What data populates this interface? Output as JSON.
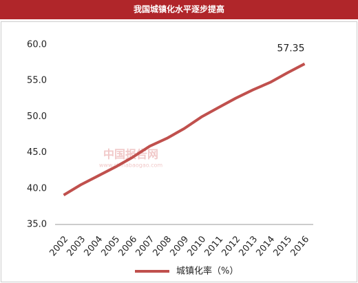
{
  "chart_data": {
    "type": "line",
    "title": "我国城镇化水平逐步提高",
    "categories": [
      "2002",
      "2003",
      "2004",
      "2005",
      "2006",
      "2007",
      "2008",
      "2009",
      "2010",
      "2011",
      "2012",
      "2013",
      "2014",
      "2015",
      "2016"
    ],
    "series": [
      {
        "name": "城镇化率（%）",
        "color": "#c0504d",
        "values": [
          39.09,
          40.53,
          41.76,
          42.99,
          44.34,
          45.89,
          46.99,
          48.34,
          49.95,
          51.27,
          52.57,
          53.73,
          54.77,
          56.1,
          57.35
        ]
      }
    ],
    "ylim": [
      35,
      60
    ],
    "yticks": [
      {
        "value": 35,
        "label": "35.0"
      },
      {
        "value": 40,
        "label": "40.0"
      },
      {
        "value": 45,
        "label": "45.0"
      },
      {
        "value": 50,
        "label": "50.0"
      },
      {
        "value": 55,
        "label": "55.0"
      },
      {
        "value": 60,
        "label": "60.0"
      }
    ],
    "grid": false,
    "legend": "bottom",
    "watermark": [
      "中国报告网",
      "www.chinabaogao.com"
    ]
  }
}
